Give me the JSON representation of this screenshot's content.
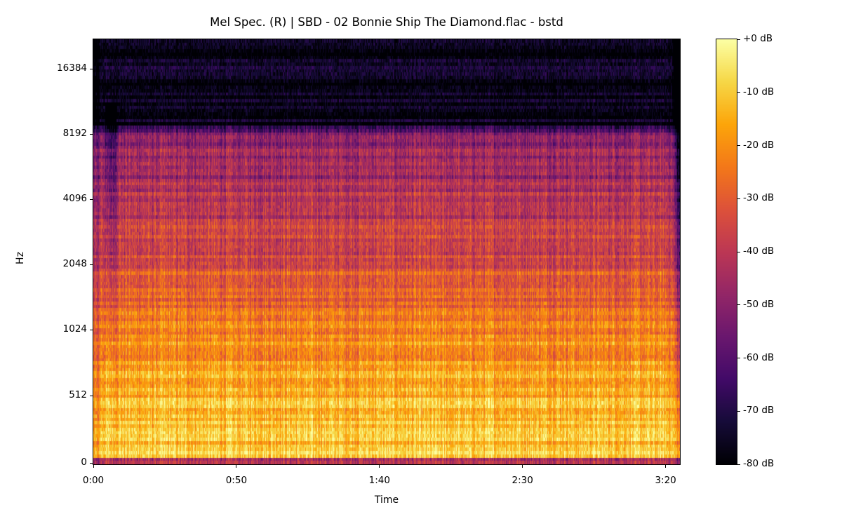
{
  "chart_data": {
    "type": "heatmap",
    "title": "Mel Spec. (R) | SBD - 02 Bonnie Ship The Diamond.flac - bstd",
    "xlabel": "Time",
    "ylabel": "Hz",
    "x_ticks": [
      {
        "label": "0:00",
        "seconds": 0
      },
      {
        "label": "0:50",
        "seconds": 50
      },
      {
        "label": "1:40",
        "seconds": 100
      },
      {
        "label": "2:30",
        "seconds": 150
      },
      {
        "label": "3:20",
        "seconds": 200
      }
    ],
    "xlim_seconds": [
      0,
      205
    ],
    "y_scale": "mel",
    "y_ticks": [
      {
        "label": "0",
        "hz": 0
      },
      {
        "label": "512",
        "hz": 512
      },
      {
        "label": "1024",
        "hz": 1024
      },
      {
        "label": "2048",
        "hz": 2048
      },
      {
        "label": "4096",
        "hz": 4096
      },
      {
        "label": "8192",
        "hz": 8192
      },
      {
        "label": "16384",
        "hz": 16384
      }
    ],
    "ylim_hz": [
      0,
      22050
    ],
    "colormap": "inferno",
    "colorbar": {
      "range_db": [
        -80,
        0
      ],
      "ticks": [
        "+0 dB",
        "-10 dB",
        "-20 dB",
        "-30 dB",
        "-40 dB",
        "-50 dB",
        "-60 dB",
        "-70 dB",
        "-80 dB"
      ]
    },
    "grid": false,
    "colors": [
      "#000004",
      "#160b39",
      "#420a68",
      "#6a176e",
      "#932667",
      "#bc3754",
      "#dd513a",
      "#f37819",
      "#fca50a",
      "#f6d746",
      "#fcffa4"
    ]
  }
}
